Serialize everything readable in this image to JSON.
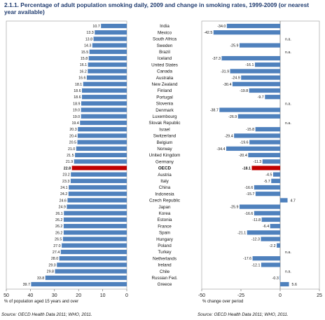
{
  "title": "2.1.1. Percentage of adult population smoking daily, 2009 and change in smoking rates, 1999-2009 (or nearest year available)",
  "chart_data": [
    {
      "type": "bar",
      "orientation": "horizontal",
      "direction": "reversed",
      "xlabel": "% of population aged 15 years and over",
      "xlim": [
        0,
        50
      ],
      "ticks": [
        "50",
        "40",
        "30",
        "20",
        "10",
        "0"
      ],
      "source": "Source: OECD Health Data 2011; WHO, 2011.",
      "bar_color": "#4f81bd",
      "highlight_color": "#c00000",
      "highlight_category": "OECD",
      "categories": [
        "India",
        "Mexico",
        "South Africa",
        "Sweden",
        "Brazil",
        "Iceland",
        "United States",
        "Canada",
        "Australia",
        "New Zealand",
        "Finland",
        "Portugal",
        "Slovenia",
        "Denmark",
        "Luxembourg",
        "Slovak Republic",
        "Israel",
        "Switzerland",
        "Belgium",
        "Norway",
        "United Kingdom",
        "Germany",
        "OECD",
        "Austria",
        "Italy",
        "China",
        "Indonesia",
        "Czech Republic",
        "Japan",
        "Korea",
        "Estonia",
        "France",
        "Spain",
        "Hungary",
        "Poland",
        "Turkey",
        "Netherlands",
        "Ireland",
        "Chile",
        "Russian Fed.",
        "Greece"
      ],
      "values": [
        10.7,
        13.3,
        13.8,
        14.3,
        15.5,
        15.8,
        16.1,
        16.2,
        16.6,
        18.1,
        18.6,
        18.6,
        18.9,
        19.0,
        19.0,
        19.4,
        20.3,
        20.4,
        20.5,
        21.0,
        21.5,
        21.9,
        22.8,
        23.2,
        23.3,
        24.1,
        24.2,
        24.6,
        24.9,
        26.1,
        26.2,
        26.2,
        26.2,
        26.5,
        27.0,
        27.4,
        28.0,
        29.0,
        29.8,
        33.8,
        39.7
      ],
      "labels": [
        "10.7",
        "13.3",
        "13.8",
        "14.3",
        "15.5",
        "15.8",
        "16.1",
        "16.2",
        "16.6",
        "18.1",
        "18.6",
        "18.6",
        "18.9",
        "19.0",
        "19.0",
        "19.4",
        "20.3",
        "20.4",
        "20.5",
        "21.0",
        "21.5",
        "21.9",
        "22.8",
        "23.2",
        "23.3",
        "24.1",
        "24.2",
        "24.6",
        "24.9",
        "26.1",
        "26.2",
        "26.2",
        "26.2",
        "26.5",
        "27.0",
        "27.4",
        "28.0",
        "29.0",
        "29.8",
        "33.8",
        "39.7"
      ]
    },
    {
      "type": "bar",
      "orientation": "horizontal",
      "xlabel": "% change over period",
      "xlim": [
        -50,
        25
      ],
      "ticks": [
        "-50",
        "-25",
        "0",
        "25"
      ],
      "source": "Source: OECD Health Data 2011; WHO, 2011.",
      "bar_color": "#4f81bd",
      "highlight_color": "#c00000",
      "highlight_category": "OECD",
      "categories": [
        "India",
        "Mexico",
        "South Africa",
        "Sweden",
        "Brazil",
        "Iceland",
        "United States",
        "Canada",
        "Australia",
        "New Zealand",
        "Finland",
        "Portugal",
        "Slovenia",
        "Denmark",
        "Luxembourg",
        "Slovak Republic",
        "Israel",
        "Switzerland",
        "Belgium",
        "Norway",
        "United Kingdom",
        "Germany",
        "OECD",
        "Austria",
        "Italy",
        "China",
        "Indonesia",
        "Czech Republic",
        "Japan",
        "Korea",
        "Estonia",
        "France",
        "Spain",
        "Hungary",
        "Poland",
        "Turkey",
        "Netherlands",
        "Ireland",
        "Chile",
        "Russian Fed.",
        "Greece"
      ],
      "values": [
        -34.0,
        -42.5,
        null,
        -25.9,
        null,
        -37.3,
        -16.1,
        -31.9,
        -24.9,
        -30.4,
        -19.8,
        -9.7,
        null,
        -38.7,
        -26.9,
        null,
        -15.8,
        -29.4,
        -19.6,
        -34.4,
        -20.4,
        -11.3,
        -18.1,
        -4.5,
        -5.7,
        -16.6,
        -15.7,
        4.7,
        -25.9,
        -16.6,
        -11.8,
        -6.4,
        -21.1,
        -12.3,
        -2.2,
        null,
        -17.6,
        -12.1,
        null,
        -0.3,
        5.6
      ],
      "labels": [
        "-34.0",
        "-42.5",
        "n.a.",
        "-25.9",
        "n.a.",
        "-37.3",
        "-16.1",
        "-31.9",
        "-24.9",
        "-30.4",
        "-19.8",
        "-9.7",
        "n.a.",
        "-38.7",
        "-26.9",
        "n.a.",
        "-15.8",
        "-29.4",
        "-19.6",
        "-34.4",
        "-20.4",
        "-11.3",
        "-18.1",
        "-4.5",
        "-5.7",
        "-16.6",
        "-15.7",
        "4.7",
        "-25.9",
        "-16.6",
        "-11.8",
        "-6.4",
        "-21.1",
        "-12.3",
        "-2.2",
        "n.a.",
        "-17.6",
        "-12.1",
        "n.a.",
        "-0.3",
        "5.6"
      ]
    }
  ]
}
